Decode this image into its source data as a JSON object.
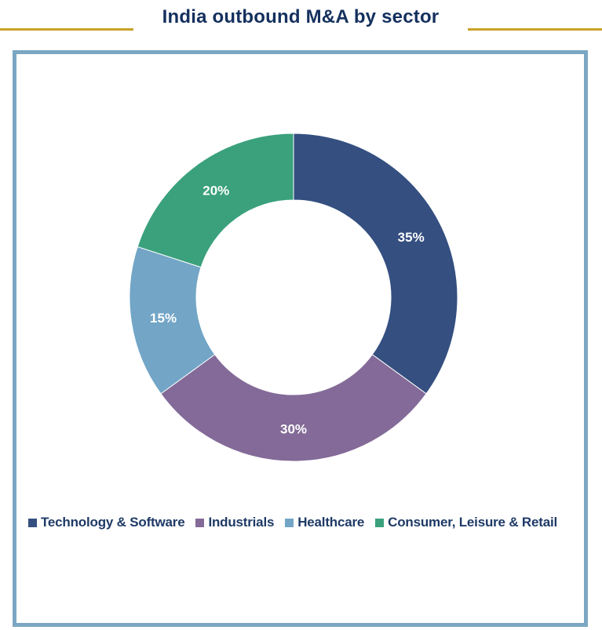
{
  "title": "India outbound M&A by sector",
  "colors": {
    "title_rule": "#c9a227",
    "frame_border": "#7ba7c3",
    "title_text": "#14305e"
  },
  "chart_data": {
    "type": "pie",
    "variant": "donut",
    "categories": [
      "Technology & Software",
      "Industrials",
      "Healthcare",
      "Consumer, Leisure & Retail"
    ],
    "values": [
      35,
      30,
      15,
      20
    ],
    "value_labels": [
      "35%",
      "30%",
      "15%",
      "20%"
    ],
    "colors": [
      "#344f80",
      "#836a98",
      "#72a5c6",
      "#3aa17c"
    ],
    "legend_position": "bottom",
    "start_angle": "12 o'clock",
    "direction": "clockwise"
  },
  "legend": {
    "items": [
      {
        "label": "Technology & Software",
        "color": "#344f80"
      },
      {
        "label": "Industrials",
        "color": "#836a98"
      },
      {
        "label": "Healthcare",
        "color": "#72a5c6"
      },
      {
        "label": "Consumer, Leisure & Retail",
        "color": "#3aa17c"
      }
    ]
  }
}
